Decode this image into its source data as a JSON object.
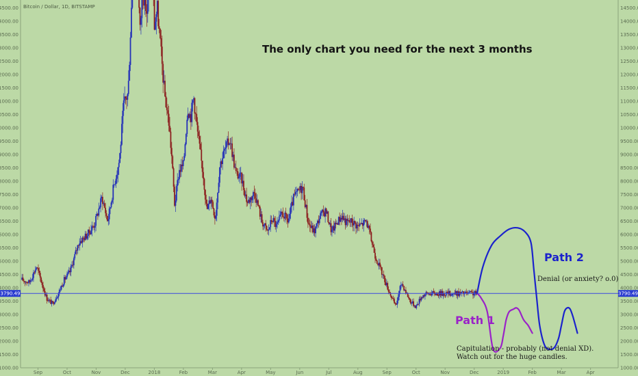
{
  "symbol_label": "Bitcoin / Dollar, 1D, BITSTAMP",
  "headline": "The only chart you need for the next 3 months",
  "path1": {
    "label": "Path 1",
    "color": "#9a22c8"
  },
  "path2": {
    "label": "Path 2",
    "color": "#1b22cc"
  },
  "annotations": {
    "denial": "Denial (or anxiety? o.0)",
    "capitulation_line1": "Capitulation - probably (not denial XD).",
    "capitulation_line2": "Watch out for the huge candles."
  },
  "colors": {
    "background": "#bcd9a6",
    "up_candle": "#2431b8",
    "down_candle": "#8c1f1f",
    "price_line": "#3a47e0",
    "price_badge": "#2a3bd0"
  },
  "chart_data": {
    "type": "line",
    "title": "The only chart you need for the next 3 months",
    "price_marker": {
      "value": 3790.49,
      "label": "3790.49"
    },
    "y_ticks": [
      "1000.00",
      "1500.00",
      "2000.00",
      "2500.00",
      "3000.00",
      "3500.00",
      "4000.00",
      "4500.00",
      "5000.00",
      "5500.00",
      "6000.00",
      "6500.00",
      "7000.00",
      "7500.00",
      "8000.00",
      "8500.00",
      "9000.00",
      "9500.00",
      "10000.00",
      "10500.00",
      "11000.00",
      "11500.00",
      "12000.00",
      "12500.00",
      "13000.00",
      "13500.00",
      "14000.00",
      "14500.00"
    ],
    "ylim": [
      1000,
      14800
    ],
    "x_ticks": [
      "Sep",
      "Oct",
      "Nov",
      "Dec",
      "2018",
      "Feb",
      "Mar",
      "Apr",
      "May",
      "Jun",
      "Jul",
      "Aug",
      "Sep",
      "Oct",
      "Nov",
      "Dec",
      "2019",
      "Feb",
      "Mar",
      "Apr"
    ],
    "x_tick_months": [
      1,
      2,
      3,
      4,
      5,
      6,
      7,
      8,
      9,
      10,
      11,
      12,
      13,
      14,
      15,
      16,
      17,
      18,
      19,
      20
    ],
    "xlim": [
      0.4,
      20.95
    ],
    "series": [
      {
        "x": [
          0.45,
          0.7,
          0.95,
          1.3,
          1.5,
          1.7,
          1.9,
          2.1,
          2.4,
          2.7,
          2.95,
          3.2,
          3.4,
          3.6,
          3.8,
          3.95,
          4.1,
          4.2,
          4.3,
          4.4,
          4.5,
          4.6,
          4.75,
          4.9,
          5.0,
          5.1,
          5.2,
          5.35,
          5.5,
          5.6,
          5.7,
          5.85,
          6.0,
          6.15,
          6.25,
          6.35,
          6.5,
          6.7,
          6.8,
          6.95,
          7.1,
          7.25,
          7.4,
          7.6,
          7.8,
          8.0,
          8.2,
          8.45,
          8.7,
          8.9,
          9.05,
          9.2,
          9.4,
          9.6,
          9.8,
          10.1,
          10.3,
          10.5,
          10.7,
          10.9,
          11.1,
          11.3,
          11.45,
          11.6,
          11.8,
          12.0,
          12.3,
          12.6,
          12.85,
          13.1,
          13.3,
          13.5,
          13.8,
          14.0,
          14.2,
          14.4,
          14.6,
          14.8,
          15.0,
          15.15,
          15.3,
          15.5,
          15.7,
          15.85,
          16.0,
          16.1,
          16.2,
          16.35,
          16.5,
          16.65
        ],
        "values": [
          4300,
          4200,
          4800,
          3600,
          3400,
          3800,
          4300,
          4600,
          5700,
          6000,
          6400,
          7400,
          6500,
          7800,
          8800,
          10900,
          11300,
          14200,
          16900,
          17500,
          13500,
          15200,
          14300,
          16800,
          13800,
          14500,
          13200,
          11300,
          10200,
          8900,
          7100,
          8400,
          8600,
          10800,
          10400,
          11200,
          9700,
          8100,
          6900,
          7400,
          6600,
          8600,
          9100,
          9600,
          8300,
          8100,
          7200,
          7600,
          6500,
          6100,
          6600,
          6300,
          6800,
          6500,
          7400,
          7800,
          6400,
          6100,
          6700,
          6900,
          6100,
          6500,
          6700,
          6450,
          6500,
          6300,
          6500,
          5200,
          4500,
          3800,
          3300,
          4200,
          3500,
          3300,
          3700,
          3790,
          3790,
          3790,
          3790,
          3790,
          3790,
          3790,
          3790,
          3790,
          3790,
          3790,
          3790,
          3790,
          3790,
          3790
        ]
      },
      {
        "name": "Path 1",
        "x": [
          16.1,
          16.25,
          16.45,
          16.65,
          16.9,
          17.0,
          17.1,
          17.2,
          17.35,
          17.45,
          17.55,
          17.7,
          17.85,
          17.95,
          18.0
        ],
        "values": [
          3800,
          3600,
          3100,
          1700,
          1750,
          2200,
          2800,
          3100,
          3200,
          3250,
          3150,
          2800,
          2600,
          2400,
          2300
        ]
      },
      {
        "name": "Path 2",
        "x": [
          16.1,
          16.3,
          16.6,
          16.9,
          17.2,
          17.5,
          17.75,
          17.95,
          18.05,
          18.15,
          18.25,
          18.4,
          18.55,
          18.75,
          18.9,
          19.0,
          19.1,
          19.2,
          19.3,
          19.4,
          19.55
        ],
        "values": [
          3800,
          4800,
          5600,
          5950,
          6200,
          6250,
          6100,
          5700,
          4700,
          3600,
          2600,
          1900,
          1700,
          1750,
          2100,
          2600,
          3100,
          3250,
          3200,
          2900,
          2300
        ]
      }
    ],
    "grid": false,
    "legend": "none"
  }
}
